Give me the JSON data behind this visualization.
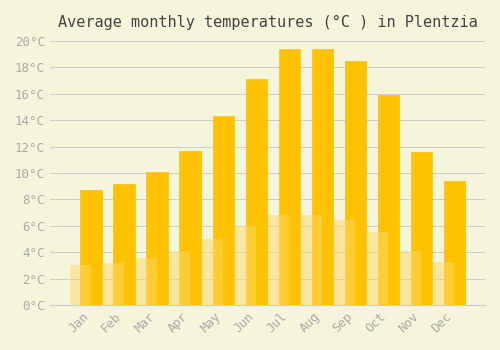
{
  "title": "Average monthly temperatures (°C ) in Plentzia",
  "months": [
    "Jan",
    "Feb",
    "Mar",
    "Apr",
    "May",
    "Jun",
    "Jul",
    "Aug",
    "Sep",
    "Oct",
    "Nov",
    "Dec"
  ],
  "values": [
    8.7,
    9.2,
    10.1,
    11.7,
    14.3,
    17.1,
    19.4,
    19.4,
    18.5,
    15.9,
    11.6,
    9.4
  ],
  "bar_color_top": "#FFC200",
  "bar_color_bottom": "#FFD966",
  "background_color": "#F5F5DC",
  "grid_color": "#CCCCCC",
  "ylim": [
    0,
    20
  ],
  "ytick_step": 2,
  "title_fontsize": 11,
  "tick_fontsize": 9,
  "tick_color": "#AAAAAA",
  "font_family": "monospace"
}
